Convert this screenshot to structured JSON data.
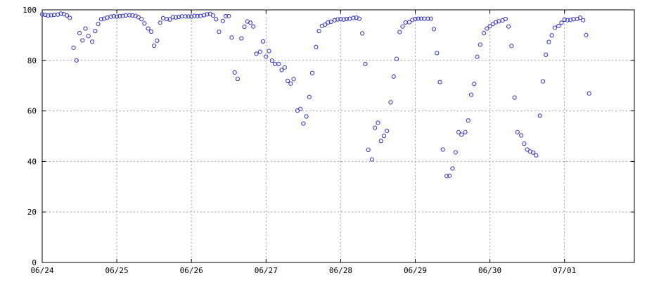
{
  "chart_data": {
    "type": "scatter",
    "title": "",
    "xlabel": "",
    "ylabel": "",
    "x_tick_labels": [
      "06/24",
      "06/25",
      "06/26",
      "06/27",
      "06/28",
      "06/29",
      "06/30",
      "07/01"
    ],
    "y_tick_labels": [
      "0",
      "20",
      "40",
      "60",
      "80",
      "100"
    ],
    "xlim": [
      0,
      7.8
    ],
    "ylim": [
      0,
      100
    ],
    "grid": true,
    "legend": "none",
    "colors": {
      "marker": "#3333cc",
      "grid": "#a0a0a0",
      "axis": "#000000",
      "background": "#ffffff"
    },
    "series": [
      {
        "name": "",
        "points": [
          [
            0.0,
            98.2
          ],
          [
            0.04,
            98.0
          ],
          [
            0.08,
            97.8
          ],
          [
            0.12,
            97.9
          ],
          [
            0.16,
            98.0
          ],
          [
            0.21,
            98.1
          ],
          [
            0.25,
            98.5
          ],
          [
            0.29,
            98.3
          ],
          [
            0.33,
            97.8
          ],
          [
            0.37,
            96.8
          ],
          [
            0.42,
            85.0
          ],
          [
            0.46,
            80.0
          ],
          [
            0.5,
            90.8
          ],
          [
            0.54,
            87.9
          ],
          [
            0.58,
            92.6
          ],
          [
            0.62,
            89.6
          ],
          [
            0.67,
            87.4
          ],
          [
            0.71,
            91.6
          ],
          [
            0.75,
            94.4
          ],
          [
            0.79,
            96.3
          ],
          [
            0.83,
            96.5
          ],
          [
            0.87,
            96.9
          ],
          [
            0.92,
            97.3
          ],
          [
            0.96,
            97.5
          ],
          [
            1.0,
            97.3
          ],
          [
            1.04,
            97.5
          ],
          [
            1.08,
            97.6
          ],
          [
            1.12,
            97.8
          ],
          [
            1.17,
            97.9
          ],
          [
            1.21,
            97.8
          ],
          [
            1.25,
            97.6
          ],
          [
            1.29,
            97.1
          ],
          [
            1.33,
            96.3
          ],
          [
            1.37,
            94.6
          ],
          [
            1.42,
            92.6
          ],
          [
            1.46,
            91.4
          ],
          [
            1.5,
            85.8
          ],
          [
            1.54,
            87.8
          ],
          [
            1.58,
            94.9
          ],
          [
            1.62,
            96.7
          ],
          [
            1.67,
            96.4
          ],
          [
            1.71,
            96.2
          ],
          [
            1.75,
            97.1
          ],
          [
            1.79,
            97.0
          ],
          [
            1.83,
            97.2
          ],
          [
            1.87,
            97.4
          ],
          [
            1.92,
            97.4
          ],
          [
            1.96,
            97.4
          ],
          [
            2.0,
            97.3
          ],
          [
            2.04,
            97.6
          ],
          [
            2.08,
            97.5
          ],
          [
            2.12,
            97.6
          ],
          [
            2.17,
            97.9
          ],
          [
            2.21,
            98.2
          ],
          [
            2.25,
            98.4
          ],
          [
            2.29,
            97.8
          ],
          [
            2.33,
            96.3
          ],
          [
            2.37,
            91.3
          ],
          [
            2.42,
            95.6
          ],
          [
            2.46,
            97.5
          ],
          [
            2.5,
            97.5
          ],
          [
            2.54,
            89.0
          ],
          [
            2.58,
            75.2
          ],
          [
            2.62,
            72.7
          ],
          [
            2.67,
            88.7
          ],
          [
            2.71,
            93.3
          ],
          [
            2.75,
            95.4
          ],
          [
            2.79,
            94.9
          ],
          [
            2.83,
            93.4
          ],
          [
            2.87,
            82.6
          ],
          [
            2.92,
            83.4
          ],
          [
            2.96,
            87.5
          ],
          [
            3.0,
            81.5
          ],
          [
            3.04,
            83.7
          ],
          [
            3.08,
            79.9
          ],
          [
            3.12,
            78.6
          ],
          [
            3.17,
            78.6
          ],
          [
            3.21,
            76.2
          ],
          [
            3.25,
            77.2
          ],
          [
            3.29,
            71.9
          ],
          [
            3.33,
            70.8
          ],
          [
            3.37,
            72.6
          ],
          [
            3.42,
            60.1
          ],
          [
            3.46,
            60.8
          ],
          [
            3.5,
            55.0
          ],
          [
            3.54,
            57.8
          ],
          [
            3.58,
            65.5
          ],
          [
            3.62,
            75.0
          ],
          [
            3.67,
            85.3
          ],
          [
            3.71,
            91.6
          ],
          [
            3.75,
            93.6
          ],
          [
            3.79,
            94.1
          ],
          [
            3.83,
            95.0
          ],
          [
            3.87,
            95.3
          ],
          [
            3.92,
            95.9
          ],
          [
            3.96,
            96.2
          ],
          [
            4.0,
            96.3
          ],
          [
            4.04,
            96.2
          ],
          [
            4.08,
            96.4
          ],
          [
            4.12,
            96.5
          ],
          [
            4.17,
            96.8
          ],
          [
            4.21,
            96.9
          ],
          [
            4.25,
            96.5
          ],
          [
            4.29,
            90.7
          ],
          [
            4.33,
            78.6
          ],
          [
            4.37,
            44.6
          ],
          [
            4.42,
            40.8
          ],
          [
            4.46,
            53.3
          ],
          [
            4.5,
            55.3
          ],
          [
            4.54,
            48.1
          ],
          [
            4.58,
            50.1
          ],
          [
            4.62,
            52.1
          ],
          [
            4.67,
            63.4
          ],
          [
            4.71,
            73.6
          ],
          [
            4.75,
            80.6
          ],
          [
            4.79,
            91.2
          ],
          [
            4.83,
            93.4
          ],
          [
            4.87,
            95.0
          ],
          [
            4.92,
            95.1
          ],
          [
            4.96,
            96.0
          ],
          [
            5.0,
            96.4
          ],
          [
            5.04,
            96.5
          ],
          [
            5.08,
            96.5
          ],
          [
            5.12,
            96.5
          ],
          [
            5.17,
            96.5
          ],
          [
            5.21,
            96.5
          ],
          [
            5.25,
            92.4
          ],
          [
            5.29,
            82.9
          ],
          [
            5.33,
            71.4
          ],
          [
            5.37,
            44.7
          ],
          [
            5.42,
            34.2
          ],
          [
            5.46,
            34.3
          ],
          [
            5.5,
            37.2
          ],
          [
            5.54,
            43.6
          ],
          [
            5.58,
            51.6
          ],
          [
            5.62,
            50.6
          ],
          [
            5.67,
            51.6
          ],
          [
            5.71,
            56.2
          ],
          [
            5.75,
            66.4
          ],
          [
            5.79,
            70.7
          ],
          [
            5.83,
            81.4
          ],
          [
            5.87,
            86.2
          ],
          [
            5.92,
            90.8
          ],
          [
            5.96,
            92.6
          ],
          [
            6.0,
            93.5
          ],
          [
            6.04,
            94.4
          ],
          [
            6.08,
            95.1
          ],
          [
            6.12,
            95.5
          ],
          [
            6.17,
            95.8
          ],
          [
            6.21,
            96.4
          ],
          [
            6.25,
            93.4
          ],
          [
            6.29,
            85.7
          ],
          [
            6.33,
            65.3
          ],
          [
            6.37,
            51.6
          ],
          [
            6.42,
            50.3
          ],
          [
            6.46,
            47.0
          ],
          [
            6.5,
            44.7
          ],
          [
            6.54,
            43.9
          ],
          [
            6.58,
            43.5
          ],
          [
            6.62,
            42.4
          ],
          [
            6.67,
            58.1
          ],
          [
            6.71,
            71.7
          ],
          [
            6.75,
            82.2
          ],
          [
            6.79,
            87.3
          ],
          [
            6.83,
            89.9
          ],
          [
            6.87,
            92.9
          ],
          [
            6.92,
            93.6
          ],
          [
            6.96,
            94.9
          ],
          [
            7.0,
            96.1
          ],
          [
            7.04,
            95.9
          ],
          [
            7.08,
            96.0
          ],
          [
            7.12,
            96.3
          ],
          [
            7.17,
            96.4
          ],
          [
            7.21,
            96.9
          ],
          [
            7.25,
            95.9
          ],
          [
            7.29,
            90.0
          ],
          [
            7.33,
            66.9
          ]
        ]
      }
    ]
  }
}
